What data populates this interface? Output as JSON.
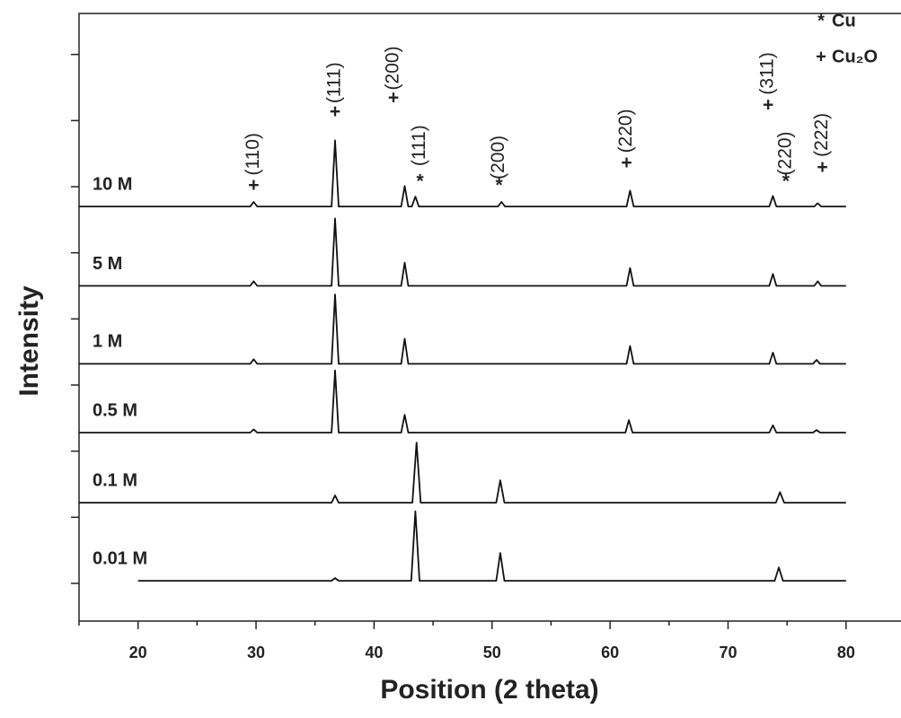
{
  "chart_data": {
    "type": "line",
    "xlabel": "Position (2 theta)",
    "ylabel": "Intensity",
    "xlim": [
      15,
      84.2
    ],
    "xticks": [
      20,
      30,
      40,
      50,
      60,
      70,
      80
    ],
    "xticks_minor": [
      15,
      25,
      35,
      45,
      55,
      65,
      75
    ],
    "ylim": [
      0.43,
      9.62
    ],
    "yticks": [
      1,
      2,
      3,
      4,
      5,
      6,
      7,
      8,
      9
    ],
    "ytick_labels": false,
    "color": "#111111",
    "series": [
      {
        "name": "10 M",
        "x": [
          15,
          29.5,
          29.8,
          30.1,
          36.4,
          36.7,
          37.0,
          42.3,
          42.6,
          42.9,
          43.2,
          43.5,
          43.8,
          50.5,
          50.8,
          51.1,
          61.4,
          61.7,
          62.0,
          73.5,
          73.8,
          74.1,
          77.3,
          77.6,
          77.9,
          80
        ],
        "values": [
          6.7,
          6.7,
          6.77,
          6.7,
          6.7,
          7.7,
          6.7,
          6.7,
          7.01,
          6.7,
          6.7,
          6.85,
          6.7,
          6.7,
          6.77,
          6.7,
          6.7,
          6.94,
          6.7,
          6.7,
          6.86,
          6.7,
          6.7,
          6.75,
          6.7,
          6.7
        ]
      },
      {
        "name": "5 M",
        "x": [
          15,
          29.5,
          29.8,
          30.1,
          36.4,
          36.7,
          37.0,
          42.3,
          42.6,
          42.9,
          61.4,
          61.7,
          62.0,
          73.5,
          73.8,
          74.1,
          77.3,
          77.6,
          77.9,
          80
        ],
        "values": [
          5.5,
          5.5,
          5.57,
          5.5,
          5.5,
          6.52,
          5.5,
          5.5,
          5.85,
          5.5,
          5.5,
          5.77,
          5.5,
          5.5,
          5.68,
          5.5,
          5.5,
          5.57,
          5.5,
          5.5
        ]
      },
      {
        "name": "1 M",
        "x": [
          15,
          29.5,
          29.8,
          30.1,
          36.4,
          36.7,
          37.0,
          42.3,
          42.6,
          42.9,
          61.4,
          61.7,
          62.0,
          73.5,
          73.8,
          74.1,
          77.2,
          77.5,
          77.8,
          80
        ],
        "values": [
          4.32,
          4.32,
          4.39,
          4.32,
          4.32,
          5.37,
          4.32,
          4.32,
          4.7,
          4.32,
          4.32,
          4.59,
          4.32,
          4.32,
          4.49,
          4.32,
          4.32,
          4.38,
          4.32,
          4.32
        ]
      },
      {
        "name": "0.5 M",
        "x": [
          15,
          29.5,
          29.8,
          30.1,
          36.4,
          36.7,
          37.0,
          42.3,
          42.6,
          42.9,
          61.3,
          61.6,
          61.9,
          73.5,
          73.8,
          74.1,
          77.2,
          77.5,
          77.8,
          80
        ],
        "values": [
          3.28,
          3.28,
          3.33,
          3.28,
          3.28,
          4.22,
          3.28,
          3.28,
          3.55,
          3.28,
          3.28,
          3.47,
          3.28,
          3.28,
          3.39,
          3.28,
          3.28,
          3.32,
          3.28,
          3.28
        ]
      },
      {
        "name": "0.1 M",
        "x": [
          15,
          36.4,
          36.7,
          37.0,
          43.25,
          43.6,
          43.95,
          50.35,
          50.7,
          51.05,
          74.05,
          74.4,
          74.75,
          80
        ],
        "values": [
          2.22,
          2.22,
          2.33,
          2.22,
          2.22,
          3.13,
          2.22,
          2.22,
          2.56,
          2.22,
          2.22,
          2.38,
          2.22,
          2.22
        ]
      },
      {
        "name": "0.01 M",
        "x": [
          20,
          36.4,
          36.7,
          37.0,
          43.15,
          43.5,
          43.85,
          50.35,
          50.7,
          51.05,
          73.95,
          74.3,
          74.65,
          80
        ],
        "values": [
          1.04,
          1.04,
          1.08,
          1.04,
          1.04,
          2.09,
          1.04,
          1.04,
          1.46,
          1.04,
          1.04,
          1.24,
          1.04,
          1.04
        ]
      }
    ],
    "annotations": [
      {
        "marker": "+",
        "label": "(110)",
        "x": 29.8,
        "marker_y": 7.01,
        "label_y": 7.17
      },
      {
        "marker": "+",
        "label": "(111)",
        "x": 36.7,
        "marker_y": 8.12,
        "label_y": 8.26
      },
      {
        "marker": "+",
        "label": "(200)",
        "x": 41.65,
        "marker_y": 8.33,
        "label_y": 8.46
      },
      {
        "marker": "*",
        "label": "(111)",
        "x": 43.9,
        "marker_y": 7.07,
        "label_y": 7.31
      },
      {
        "marker": "*",
        "label": "(200)",
        "x": 50.6,
        "marker_y": 7.01,
        "label_y": 7.11
      },
      {
        "marker": "+",
        "label": "(220)",
        "x": 61.4,
        "marker_y": 7.35,
        "label_y": 7.51
      },
      {
        "marker": "*",
        "label": "(220)",
        "x": 74.9,
        "marker_y": 7.07,
        "label_y": 7.17
      },
      {
        "marker": "+",
        "label": "(311)",
        "x": 73.4,
        "marker_y": 8.22,
        "label_y": 8.39
      },
      {
        "marker": "+",
        "label": "(222)",
        "x": 78.0,
        "marker_y": 7.28,
        "label_y": 7.45
      }
    ],
    "phase_legend": [
      {
        "symbol": "*",
        "name": "Cu"
      },
      {
        "symbol": "+",
        "name": "Cu₂O"
      }
    ]
  }
}
